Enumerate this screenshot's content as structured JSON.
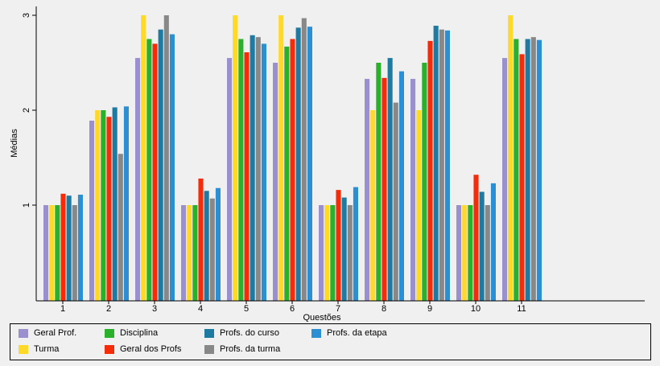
{
  "chart_data": {
    "type": "bar",
    "xlabel": "Questões",
    "ylabel": "Médias",
    "categories": [
      "1",
      "2",
      "3",
      "4",
      "5",
      "6",
      "7",
      "8",
      "9",
      "10",
      "11"
    ],
    "ylim": [
      0.05,
      3.05
    ],
    "yticks": [
      1,
      2,
      3
    ],
    "grid": false,
    "legend_position": "bottom",
    "series": [
      {
        "name": "Geral Prof.",
        "color": "#9a8fcf",
        "values": [
          1.0,
          1.89,
          2.55,
          1.0,
          2.55,
          2.5,
          1.0,
          2.33,
          2.33,
          1.0,
          2.55
        ]
      },
      {
        "name": "Turma",
        "color": "#ffd92a",
        "values": [
          1.0,
          2.0,
          3.0,
          1.0,
          3.0,
          3.0,
          1.0,
          2.0,
          2.0,
          1.0,
          3.0
        ]
      },
      {
        "name": "Disciplina",
        "color": "#2ab02a",
        "values": [
          1.0,
          2.0,
          2.75,
          1.0,
          2.75,
          2.67,
          1.0,
          2.5,
          2.5,
          1.0,
          2.75
        ]
      },
      {
        "name": "Geral dos Profs",
        "color": "#f52c0a",
        "values": [
          1.12,
          1.93,
          2.7,
          1.28,
          2.61,
          2.75,
          1.16,
          2.34,
          2.73,
          1.32,
          2.59
        ]
      },
      {
        "name": "Profs. do curso",
        "color": "#1f7aa2",
        "values": [
          1.1,
          2.03,
          2.85,
          1.15,
          2.79,
          2.87,
          1.08,
          2.55,
          2.89,
          1.14,
          2.75
        ]
      },
      {
        "name": "Profs. da turma",
        "color": "#888888",
        "values": [
          1.0,
          1.54,
          3.0,
          1.07,
          2.77,
          2.97,
          1.0,
          2.08,
          2.85,
          1.0,
          2.77
        ]
      },
      {
        "name": "Profs. da etapa",
        "color": "#2c8fd4",
        "values": [
          1.11,
          2.04,
          2.8,
          1.18,
          2.7,
          2.88,
          1.19,
          2.41,
          2.84,
          1.23,
          2.74
        ]
      }
    ]
  }
}
